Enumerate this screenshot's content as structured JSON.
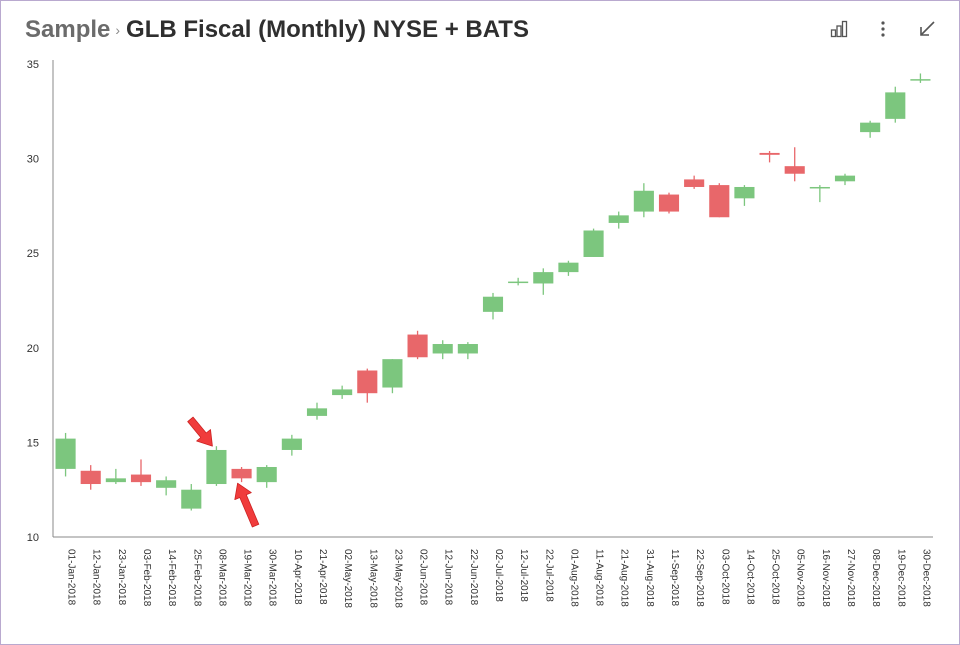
{
  "header": {
    "breadcrumb": "Sample",
    "separator": "›",
    "title": "GLB Fiscal (Monthly) NYSE + BATS"
  },
  "toolbar": {
    "icons": [
      "bar-chart-icon",
      "more-vert-icon",
      "collapse-icon"
    ]
  },
  "colors": {
    "up": "#7cc67e",
    "down": "#e8676a",
    "arrow": "#f03c3c",
    "axis": "#888888"
  },
  "chart_data": {
    "type": "candlestick",
    "title": "",
    "xlabel": "",
    "ylabel": "",
    "ylim": [
      10,
      35
    ],
    "yticks": [
      10,
      15,
      20,
      25,
      30,
      35
    ],
    "grid": false,
    "legend": "none",
    "categories": [
      "01-Jan-2018",
      "12-Jan-2018",
      "23-Jan-2018",
      "03-Feb-2018",
      "14-Feb-2018",
      "25-Feb-2018",
      "08-Mar-2018",
      "19-Mar-2018",
      "30-Mar-2018",
      "10-Apr-2018",
      "21-Apr-2018",
      "02-May-2018",
      "13-May-2018",
      "23-May-2018",
      "02-Jun-2018",
      "12-Jun-2018",
      "22-Jun-2018",
      "02-Jul-2018",
      "12-Jul-2018",
      "22-Jul-2018",
      "01-Aug-2018",
      "11-Aug-2018",
      "21-Aug-2018",
      "31-Aug-2018",
      "11-Sep-2018",
      "22-Sep-2018",
      "03-Oct-2018",
      "14-Oct-2018",
      "25-Oct-2018",
      "05-Nov-2018",
      "16-Nov-2018",
      "27-Nov-2018",
      "08-Dec-2018",
      "19-Dec-2018",
      "30-Dec-2018"
    ],
    "open": [
      13.6,
      13.5,
      12.9,
      13.3,
      12.6,
      11.5,
      12.8,
      13.6,
      12.9,
      14.6,
      16.4,
      17.5,
      18.8,
      17.9,
      20.7,
      19.7,
      19.7,
      21.9,
      23.5,
      23.4,
      24.0,
      24.8,
      26.6,
      27.2,
      28.1,
      28.9,
      28.6,
      27.9,
      30.3,
      29.6,
      28.5,
      28.8,
      31.4,
      32.1,
      34.2
    ],
    "high": [
      15.5,
      13.8,
      13.6,
      14.1,
      13.2,
      12.8,
      14.8,
      13.7,
      13.8,
      15.4,
      17.1,
      18.0,
      18.9,
      19.4,
      20.9,
      20.4,
      20.3,
      22.9,
      23.7,
      24.2,
      24.6,
      26.3,
      27.2,
      28.7,
      28.2,
      29.1,
      28.7,
      28.6,
      30.4,
      30.6,
      28.6,
      29.2,
      32.0,
      33.8,
      34.5
    ],
    "low": [
      13.2,
      12.5,
      12.8,
      12.7,
      12.2,
      11.4,
      12.7,
      12.9,
      12.6,
      14.3,
      16.2,
      17.3,
      17.1,
      17.6,
      19.4,
      19.4,
      19.4,
      21.5,
      23.3,
      22.8,
      23.8,
      24.8,
      26.3,
      26.9,
      27.1,
      28.4,
      26.9,
      27.5,
      29.8,
      28.8,
      27.7,
      28.6,
      31.1,
      31.9,
      34.0
    ],
    "close": [
      15.2,
      12.8,
      13.1,
      12.9,
      13.0,
      12.5,
      14.6,
      13.1,
      13.7,
      15.2,
      16.8,
      17.8,
      17.6,
      19.4,
      19.5,
      20.2,
      20.2,
      22.7,
      23.5,
      24.0,
      24.5,
      26.2,
      27.0,
      28.3,
      27.2,
      28.5,
      26.9,
      28.5,
      30.2,
      29.2,
      28.5,
      29.1,
      31.9,
      33.5,
      34.2
    ]
  }
}
